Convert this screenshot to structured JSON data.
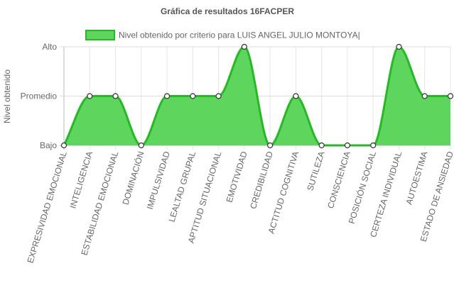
{
  "chart_data": {
    "type": "area",
    "title": "Gráfica de resultados 16FACPER",
    "ylabel": "Nivel obtenido",
    "xlabel": "",
    "y_levels": [
      "Bajo",
      "Promedio",
      "Alto"
    ],
    "ylim": [
      0,
      2
    ],
    "grid": true,
    "legend_position": "top",
    "categories": [
      "EXPRESIVIDAD EMOCIONAL",
      "INTELIGENCIA",
      "ESTABILIDAD EMOCIONAL",
      "DOMINACIÓN",
      "IMPULSIVIDAD",
      "LEALTAD GRUPAL",
      "APTITUD SITUACIONAL",
      "EMOTIVIDAD",
      "CREDIBILIDAD",
      "ACTITUD COGNITIVA",
      "SUTILEZA",
      "CONSCIENCIA",
      "POSICIÓN SOCIAL",
      "CERTEZA INDIVIDUAL",
      "AUTOESTIMA",
      "ESTADO DE ANSIEDAD"
    ],
    "series": [
      {
        "name": "Nivel obtenido por criterio para LUIS ANGEL JULIO MONTOYA|",
        "values": [
          0,
          1,
          1,
          0,
          1,
          1,
          1,
          2,
          0,
          1,
          0,
          0,
          0,
          2,
          1,
          1
        ],
        "line_color": "#22bb22",
        "fill_color": "#5ed65e",
        "point_fill": "#ffffff",
        "point_stroke": "#333333"
      }
    ]
  }
}
